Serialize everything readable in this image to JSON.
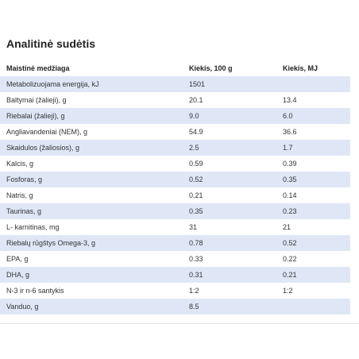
{
  "section": {
    "title": "Analitinė sudėtis"
  },
  "table": {
    "headers": [
      "Maistinė medžiaga",
      "Kiekis, 100 g",
      "Kiekis, MJ"
    ],
    "rows": [
      [
        "Metabolizuojama energija, kJ",
        "1501",
        ""
      ],
      [
        "Baltymai (žalieji), g",
        "20.1",
        "13.4"
      ],
      [
        "Riebalai (žalieji), g",
        "9.0",
        "6.0"
      ],
      [
        "Angliavandeniai (NEM), g",
        "54.9",
        "36.6"
      ],
      [
        "Skaidulos (žaliosios),  g",
        "2.5",
        "1.7"
      ],
      [
        "Kalcis, g",
        "0.59",
        "0.39"
      ],
      [
        "Fosforas, g",
        "0.52",
        "0.35"
      ],
      [
        "Natris, g",
        "0.21",
        "0.14"
      ],
      [
        "Taurinas, g",
        "0.35",
        "0.23"
      ],
      [
        "L- karnitinas, mg",
        "31",
        "21"
      ],
      [
        "Riebalų rūgštys Omega-3, g",
        "0.78",
        "0.52"
      ],
      [
        "EPA, g",
        "0.33",
        "0.22"
      ],
      [
        "DHA, g",
        "0.31",
        "0.21"
      ],
      [
        "N-3 ir n-6 santykis",
        "1:2",
        "1:2"
      ],
      [
        "Vanduo, g",
        "8.5",
        ""
      ]
    ]
  },
  "colors": {
    "stripe": "#dfe7f7",
    "text": "#333333",
    "heading": "#222222"
  }
}
